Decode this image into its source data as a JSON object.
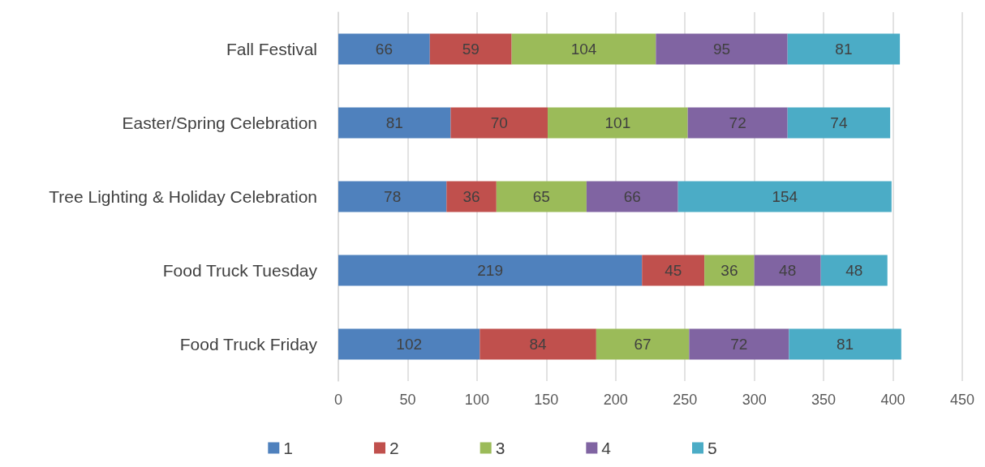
{
  "chart_data": {
    "type": "bar",
    "orientation": "horizontal",
    "stacked": true,
    "categories": [
      "Fall Festival",
      "Easter/Spring Celebration",
      "Tree Lighting & Holiday Celebration",
      "Food Truck Tuesday",
      "Food Truck Friday"
    ],
    "series": [
      {
        "name": "1",
        "color": "#4f81bd",
        "values": [
          66,
          81,
          78,
          219,
          102
        ]
      },
      {
        "name": "2",
        "color": "#c0504d",
        "values": [
          59,
          70,
          36,
          45,
          84
        ]
      },
      {
        "name": "3",
        "color": "#9bbb59",
        "values": [
          104,
          101,
          65,
          36,
          67
        ]
      },
      {
        "name": "4",
        "color": "#8064a2",
        "values": [
          95,
          72,
          66,
          48,
          72
        ]
      },
      {
        "name": "5",
        "color": "#4bacc6",
        "values": [
          81,
          74,
          154,
          48,
          81
        ]
      }
    ],
    "xlim": [
      0,
      450
    ],
    "xticks": [
      0,
      50,
      100,
      150,
      200,
      250,
      300,
      350,
      400,
      450
    ],
    "grid": "x",
    "legend": "bottom",
    "data_labels": true
  }
}
